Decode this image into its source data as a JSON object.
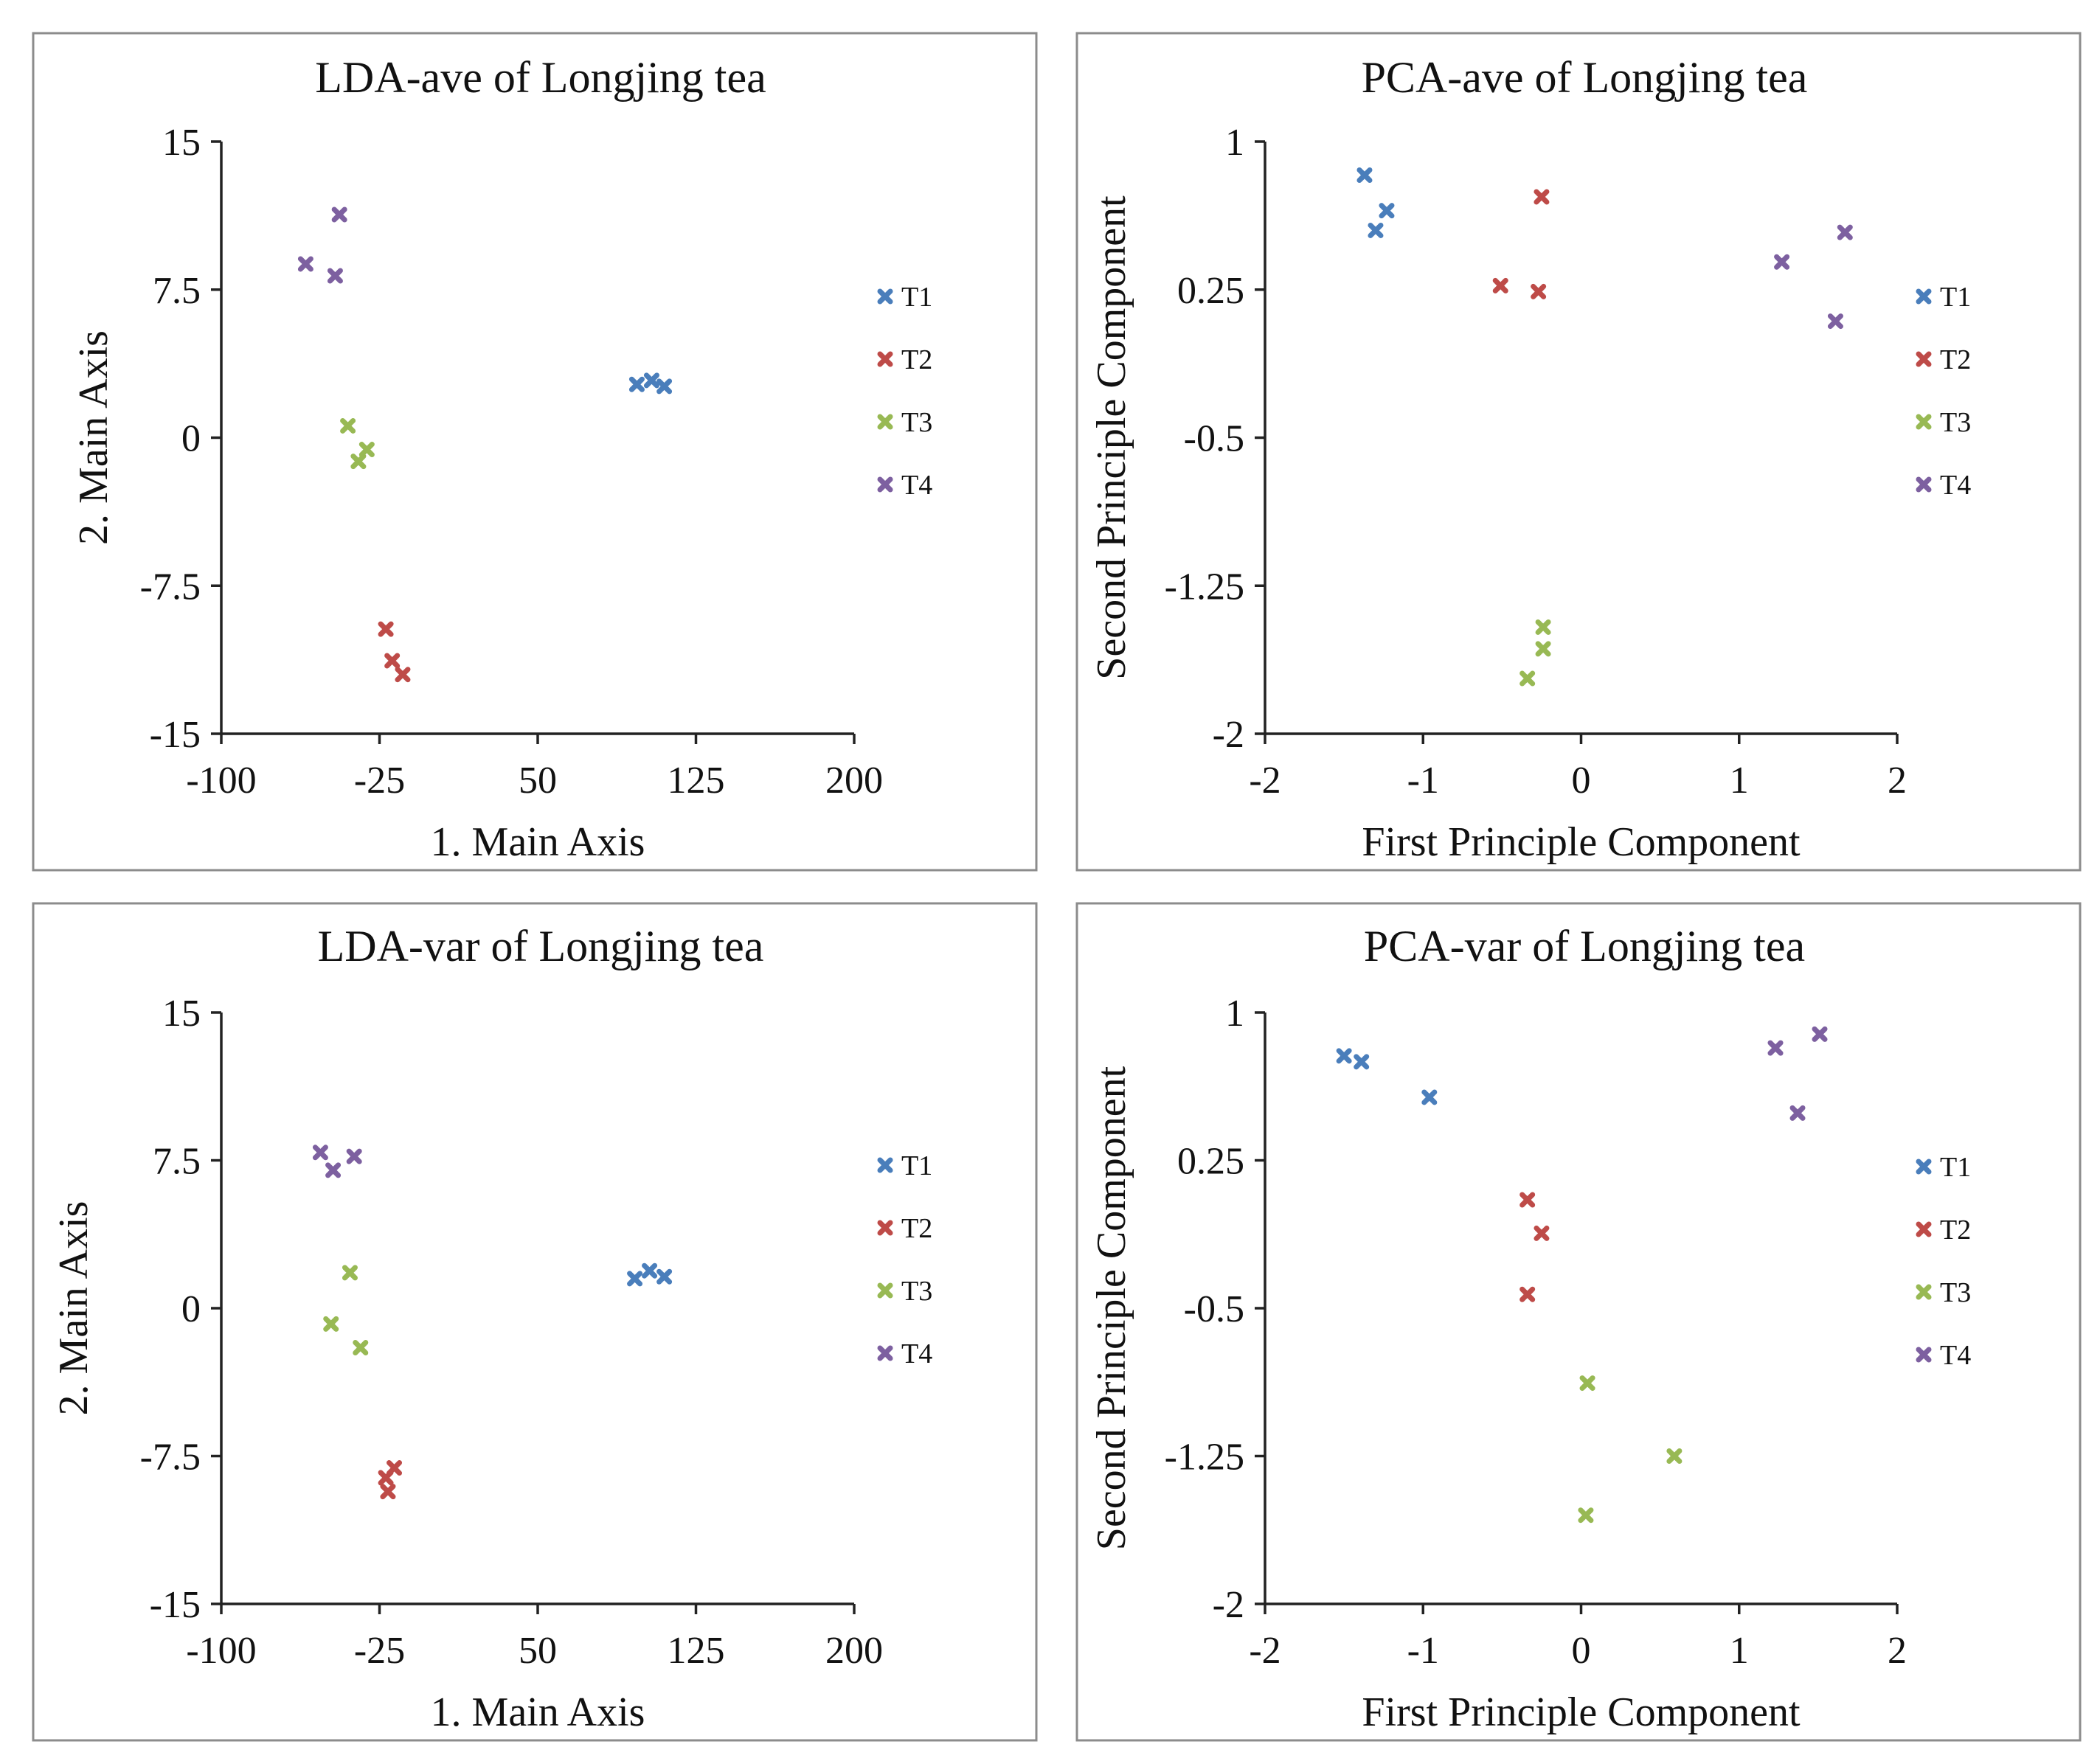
{
  "colors": {
    "T1": "#4a7ebb",
    "T2": "#be4b48",
    "T3": "#98b954",
    "T4": "#7d60a0"
  },
  "chart_data": [
    {
      "type": "scatter",
      "title": "LDA-ave of Longjing tea",
      "xlabel": "1. Main Axis",
      "ylabel": "2. Main Axis",
      "xlim": [
        -100,
        200
      ],
      "ylim": [
        -15,
        15
      ],
      "xticks": [
        -100,
        -25,
        50,
        125,
        200
      ],
      "yticks": [
        -15,
        -7.5,
        0,
        7.5,
        15
      ],
      "xtick_labels": [
        "-100",
        "-25",
        "50",
        "125",
        "200"
      ],
      "ytick_labels": [
        "-15",
        "-7.5",
        "0",
        "7.5",
        "15"
      ],
      "legend_position": "right",
      "series": [
        {
          "name": "T1",
          "x": [
            97,
            104,
            110
          ],
          "y": [
            2.7,
            2.9,
            2.6
          ]
        },
        {
          "name": "T2",
          "x": [
            -22,
            -19,
            -14
          ],
          "y": [
            -9.7,
            -11.3,
            -12.0
          ]
        },
        {
          "name": "T3",
          "x": [
            -40,
            -35,
            -31
          ],
          "y": [
            0.6,
            -1.2,
            -0.6
          ]
        },
        {
          "name": "T4",
          "x": [
            -60,
            -46,
            -44
          ],
          "y": [
            8.8,
            8.2,
            11.3
          ]
        }
      ]
    },
    {
      "type": "scatter",
      "title": "PCA-ave of Longjing tea",
      "xlabel": "First Principle Component",
      "ylabel": "Second Principle Component",
      "xlim": [
        -2,
        2
      ],
      "ylim": [
        -2,
        1
      ],
      "xticks": [
        -2,
        -1,
        0,
        1,
        2
      ],
      "yticks": [
        -2,
        -1.25,
        -0.5,
        0.25,
        1
      ],
      "xtick_labels": [
        "-2",
        "-1",
        "0",
        "1",
        "2"
      ],
      "ytick_labels": [
        "-2",
        "-1.25",
        "-0.5",
        "0.25",
        "1"
      ],
      "legend_position": "right",
      "series": [
        {
          "name": "T1",
          "x": [
            -1.37,
            -1.3,
            -1.23
          ],
          "y": [
            0.83,
            0.55,
            0.65
          ]
        },
        {
          "name": "T2",
          "x": [
            -0.51,
            -0.27,
            -0.25
          ],
          "y": [
            0.27,
            0.24,
            0.72
          ]
        },
        {
          "name": "T3",
          "x": [
            -0.34,
            -0.24,
            -0.24
          ],
          "y": [
            -1.72,
            -1.57,
            -1.46
          ]
        },
        {
          "name": "T4",
          "x": [
            1.27,
            1.61,
            1.67
          ],
          "y": [
            0.39,
            0.09,
            0.54
          ]
        }
      ]
    },
    {
      "type": "scatter",
      "title": "LDA-var of Longjing tea",
      "xlabel": "1. Main Axis",
      "ylabel": "2. Main Axis",
      "xlim": [
        -100,
        200
      ],
      "ylim": [
        -15,
        15
      ],
      "xticks": [
        -100,
        -25,
        50,
        125,
        200
      ],
      "yticks": [
        -15,
        -7.5,
        0,
        7.5,
        15
      ],
      "xtick_labels": [
        "-100",
        "-25",
        "50",
        "125",
        "200"
      ],
      "ytick_labels": [
        "-15",
        "-7.5",
        "0",
        "7.5",
        "15"
      ],
      "legend_position": "right",
      "series": [
        {
          "name": "T1",
          "x": [
            96,
            103,
            110
          ],
          "y": [
            1.5,
            1.9,
            1.6
          ]
        },
        {
          "name": "T2",
          "x": [
            -22,
            -21,
            -18
          ],
          "y": [
            -8.6,
            -9.3,
            -8.1
          ]
        },
        {
          "name": "T3",
          "x": [
            -48,
            -39,
            -34
          ],
          "y": [
            -0.8,
            1.8,
            -2.0
          ]
        },
        {
          "name": "T4",
          "x": [
            -53,
            -47,
            -37
          ],
          "y": [
            7.9,
            7.0,
            7.7
          ]
        }
      ]
    },
    {
      "type": "scatter",
      "title": "PCA-var of Longjing tea",
      "xlabel": "First Principle Component",
      "ylabel": "Second Principle Component",
      "xlim": [
        -2,
        2
      ],
      "ylim": [
        -2,
        1
      ],
      "xticks": [
        -2,
        -1,
        0,
        1,
        2
      ],
      "yticks": [
        -2,
        -1.25,
        -0.5,
        0.25,
        1
      ],
      "xtick_labels": [
        "-2",
        "-1",
        "0",
        "1",
        "2"
      ],
      "ytick_labels": [
        "-2",
        "-1.25",
        "-0.5",
        "0.25",
        "1"
      ],
      "legend_position": "right",
      "series": [
        {
          "name": "T1",
          "x": [
            -1.5,
            -1.39,
            -0.96
          ],
          "y": [
            0.78,
            0.75,
            0.57
          ]
        },
        {
          "name": "T2",
          "x": [
            -0.34,
            -0.34,
            -0.25
          ],
          "y": [
            0.05,
            -0.43,
            -0.12
          ]
        },
        {
          "name": "T3",
          "x": [
            0.03,
            0.04,
            0.59
          ],
          "y": [
            -1.55,
            -0.88,
            -1.25
          ]
        },
        {
          "name": "T4",
          "x": [
            1.23,
            1.37,
            1.51
          ],
          "y": [
            0.82,
            0.49,
            0.89
          ]
        }
      ]
    }
  ]
}
